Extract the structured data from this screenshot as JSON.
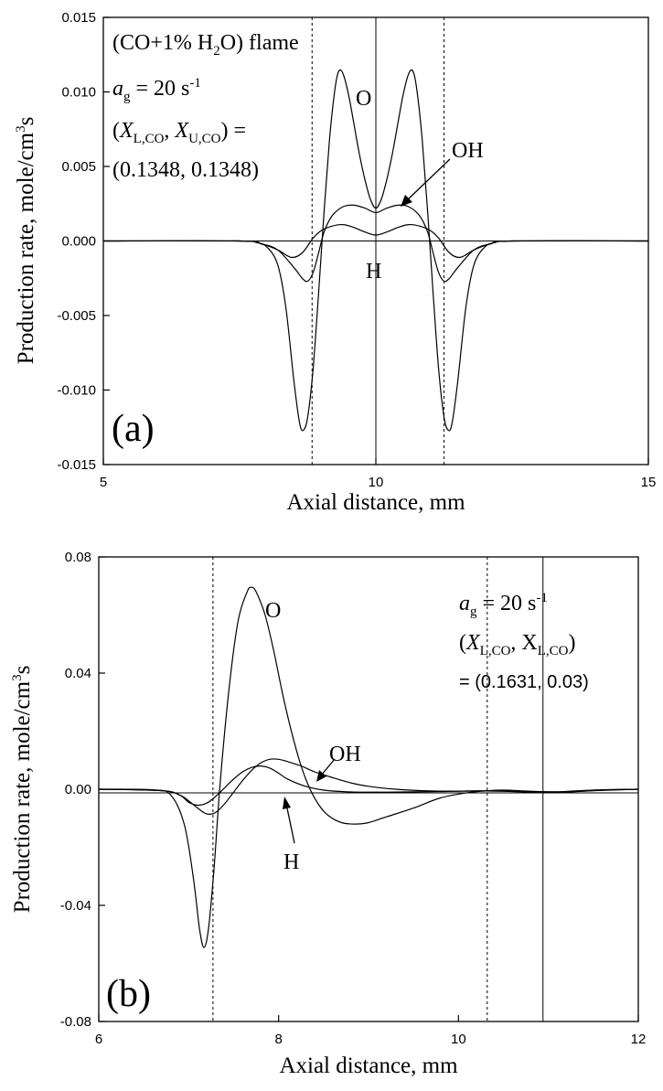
{
  "chart_data": [
    {
      "panel": "(a)",
      "type": "line",
      "xlabel": "Axial distance, mm",
      "ylabel": "Production rate, mole/cm3s",
      "xlim": [
        5,
        15
      ],
      "ylim": [
        -0.015,
        0.015
      ],
      "xticks": [
        "5",
        "10",
        "15"
      ],
      "yticks": [
        "0.015",
        "0.010",
        "0.005",
        "0.000",
        "-0.005",
        "-0.010",
        "-0.015"
      ],
      "annotations": {
        "flame": "(CO+1% H2O) flame",
        "strain": "ag = 20 s-1",
        "mixture": "(XL,CO, XU,CO) =",
        "mixture_values": "(0.1348, 0.1348)"
      },
      "series_labels": {
        "O": "O",
        "OH": "OH",
        "H": "H"
      },
      "reference_lines": {
        "dashed": [
          8.83,
          11.25
        ],
        "solid": [
          10.0
        ]
      },
      "series": [
        {
          "name": "O",
          "x": [
            5,
            7.5,
            7.8,
            8.0,
            8.2,
            8.35,
            8.5,
            8.6,
            8.67,
            8.75,
            8.85,
            8.95,
            9.05,
            9.15,
            9.25,
            9.32,
            9.4,
            9.5,
            9.6,
            9.7,
            9.8,
            9.9,
            10.0,
            10.1,
            10.2,
            10.3,
            10.4,
            10.5,
            10.6,
            10.68,
            10.75,
            10.85,
            10.95,
            11.05,
            11.15,
            11.25,
            11.33,
            11.4,
            11.5,
            11.65,
            11.8,
            12.0,
            12.2,
            12.5,
            15
          ],
          "y": [
            0,
            0,
            -0.0001,
            -0.0004,
            -0.0016,
            -0.0045,
            -0.0095,
            -0.0122,
            -0.0127,
            -0.0118,
            -0.0085,
            -0.0035,
            0.002,
            0.0068,
            0.0102,
            0.0114,
            0.0112,
            0.0098,
            0.0078,
            0.0058,
            0.0041,
            0.0028,
            0.0022,
            0.0028,
            0.0041,
            0.0058,
            0.0078,
            0.0098,
            0.0112,
            0.0114,
            0.0102,
            0.0068,
            0.002,
            -0.0035,
            -0.0085,
            -0.0118,
            -0.0127,
            -0.0122,
            -0.0095,
            -0.0045,
            -0.0016,
            -0.0004,
            -0.0001,
            0,
            0
          ]
        },
        {
          "name": "OH",
          "x": [
            5,
            7.5,
            7.9,
            8.2,
            8.5,
            8.65,
            8.75,
            8.85,
            8.95,
            9.05,
            9.2,
            9.4,
            9.6,
            9.8,
            10.0,
            10.2,
            10.4,
            10.6,
            10.8,
            10.95,
            11.05,
            11.15,
            11.25,
            11.35,
            11.5,
            11.8,
            12.1,
            12.5,
            15
          ],
          "y": [
            0,
            0,
            -0.0002,
            -0.0006,
            -0.0018,
            -0.0025,
            -0.0027,
            -0.0021,
            -0.0008,
            0.0006,
            0.0017,
            0.0023,
            0.0024,
            0.0022,
            0.0019,
            0.0022,
            0.0024,
            0.0023,
            0.0017,
            0.0006,
            -0.0008,
            -0.0021,
            -0.0027,
            -0.0025,
            -0.0018,
            -0.0006,
            -0.0002,
            0,
            0
          ]
        },
        {
          "name": "H",
          "x": [
            5,
            7.5,
            7.9,
            8.2,
            8.45,
            8.65,
            8.85,
            9.0,
            9.2,
            9.4,
            9.6,
            9.8,
            10.0,
            10.2,
            10.4,
            10.6,
            10.8,
            11.0,
            11.15,
            11.35,
            11.55,
            11.8,
            12.1,
            12.5,
            15
          ],
          "y": [
            0,
            0,
            -0.0002,
            -0.0006,
            -0.0011,
            -0.0008,
            0.0002,
            0.0007,
            0.001,
            0.0011,
            0.0009,
            0.0006,
            0.0004,
            0.0006,
            0.0009,
            0.0011,
            0.001,
            0.0007,
            0.0002,
            -0.0008,
            -0.0011,
            -0.0006,
            -0.0002,
            0,
            0
          ]
        }
      ]
    },
    {
      "panel": "(b)",
      "type": "line",
      "xlabel": "Axial distance, mm",
      "ylabel": "Production rate, mole/cm3s",
      "xlim": [
        6,
        12
      ],
      "ylim": [
        -0.08,
        0.08
      ],
      "xticks": [
        "6",
        "8",
        "10",
        "12"
      ],
      "yticks": [
        "0.08",
        "0.04",
        "0.00",
        "-0.04",
        "-0.08"
      ],
      "annotations": {
        "strain": "ag = 20 s-1",
        "mixture": "(XL,CO, XL,CO)",
        "mixture_values": "= (0.1631, 0.03)"
      },
      "series_labels": {
        "O": "O",
        "OH": "OH",
        "H": "H"
      },
      "reference_lines": {
        "dashed": [
          7.27,
          10.32
        ],
        "solid": [
          10.94
        ]
      },
      "series": [
        {
          "name": "O",
          "x": [
            6,
            6.6,
            6.8,
            6.95,
            7.05,
            7.12,
            7.17,
            7.22,
            7.28,
            7.35,
            7.45,
            7.55,
            7.65,
            7.7,
            7.75,
            7.85,
            7.95,
            8.05,
            8.15,
            8.25,
            8.35,
            8.45,
            8.55,
            8.7,
            8.85,
            9.0,
            9.2,
            9.5,
            9.8,
            10.1,
            10.3,
            10.5,
            10.8,
            11.1,
            11.4,
            11.7,
            12
          ],
          "y": [
            0,
            -0.0002,
            -0.002,
            -0.012,
            -0.03,
            -0.048,
            -0.0545,
            -0.048,
            -0.028,
            0.002,
            0.035,
            0.058,
            0.068,
            0.0695,
            0.068,
            0.06,
            0.047,
            0.032,
            0.019,
            0.008,
            0.0,
            -0.0055,
            -0.009,
            -0.0115,
            -0.012,
            -0.0115,
            -0.0095,
            -0.0065,
            -0.003,
            -0.0012,
            -0.0006,
            -0.0003,
            -0.0007,
            -0.0009,
            -0.0004,
            -0.0001,
            0
          ]
        },
        {
          "name": "OH",
          "x": [
            6,
            6.7,
            6.9,
            7.0,
            7.1,
            7.2,
            7.3,
            7.4,
            7.5,
            7.6,
            7.7,
            7.8,
            7.9,
            8.0,
            8.1,
            8.25,
            8.4,
            8.6,
            8.8,
            9.0,
            9.3,
            9.6,
            10.0,
            10.3,
            10.6,
            11.0,
            11.3,
            11.6,
            12
          ],
          "y": [
            0,
            -0.0005,
            -0.002,
            -0.004,
            -0.0065,
            -0.0085,
            -0.008,
            -0.005,
            -0.001,
            0.003,
            0.0065,
            0.009,
            0.0103,
            0.0103,
            0.0095,
            0.008,
            0.006,
            0.004,
            0.0022,
            0.001,
            0.0,
            -0.0005,
            -0.0007,
            -0.0006,
            -0.0008,
            -0.0012,
            -0.0008,
            -0.0003,
            0
          ]
        },
        {
          "name": "H",
          "x": [
            6,
            6.7,
            6.9,
            7.0,
            7.1,
            7.2,
            7.3,
            7.4,
            7.5,
            7.6,
            7.7,
            7.8,
            7.9,
            8.0,
            8.1,
            8.3,
            8.5,
            8.7,
            8.9,
            9.2,
            9.5,
            9.8,
            10.1,
            10.4,
            10.8,
            11.2,
            11.6,
            12
          ],
          "y": [
            0,
            -0.0005,
            -0.002,
            -0.0045,
            -0.0055,
            -0.0048,
            -0.0025,
            0.0005,
            0.0035,
            0.006,
            0.0075,
            0.008,
            0.0073,
            0.0055,
            0.0035,
            0.001,
            -0.0003,
            -0.0008,
            -0.001,
            -0.001,
            -0.0009,
            -0.0008,
            -0.0006,
            -0.0005,
            -0.0008,
            -0.0009,
            -0.0004,
            0
          ]
        }
      ]
    }
  ]
}
